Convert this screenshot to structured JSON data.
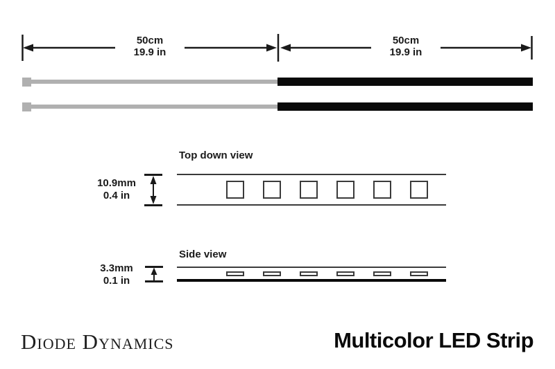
{
  "colors": {
    "ink": "#1a1a1a",
    "wire_gray": "#b0b0b0",
    "strip_black": "#0a0a0a",
    "outline": "#3a3a3a"
  },
  "length_dimensions": [
    {
      "metric": "50cm",
      "imperial": "19.9 in"
    },
    {
      "metric": "50cm",
      "imperial": "19.9 in"
    }
  ],
  "top_down_view": {
    "label": "Top down view",
    "width_metric": "10.9mm",
    "width_imperial": "0.4 in",
    "led_count": 6
  },
  "side_view": {
    "label": "Side view",
    "height_metric": "3.3mm",
    "height_imperial": "0.1 in",
    "led_count": 6
  },
  "footer": {
    "brand": "Diode Dynamics",
    "product_name": "Multicolor LED Strip"
  }
}
